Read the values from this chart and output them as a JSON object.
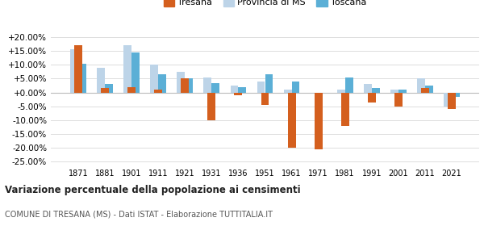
{
  "years": [
    1871,
    1881,
    1901,
    1911,
    1921,
    1931,
    1936,
    1951,
    1961,
    1971,
    1981,
    1991,
    2001,
    2011,
    2021
  ],
  "tresana": [
    17.0,
    1.5,
    2.0,
    1.0,
    5.0,
    -10.0,
    -1.0,
    -4.5,
    -20.0,
    -20.5,
    -12.0,
    -3.5,
    -5.0,
    1.5,
    -6.0
  ],
  "provincia_ms": [
    15.5,
    9.0,
    17.0,
    10.0,
    7.5,
    5.5,
    2.5,
    4.0,
    1.0,
    0.0,
    1.0,
    3.0,
    1.0,
    5.0,
    -5.0
  ],
  "toscana": [
    10.5,
    3.0,
    14.5,
    6.5,
    5.0,
    3.5,
    2.0,
    6.5,
    4.0,
    0.0,
    5.5,
    1.5,
    1.0,
    2.5,
    -1.5
  ],
  "color_tresana": "#d45f1e",
  "color_provincia": "#bdd4e8",
  "color_toscana": "#5bafd6",
  "title": "Variazione percentuale della popolazione ai censimenti",
  "subtitle": "COMUNE DI TRESANA (MS) - Dati ISTAT - Elaborazione TUTTITALIA.IT",
  "yticks": [
    -25,
    -20,
    -15,
    -10,
    -5,
    0,
    5,
    10,
    15,
    20
  ],
  "ylim": [
    -27,
    22
  ],
  "background": "#ffffff",
  "grid_color": "#dddddd"
}
